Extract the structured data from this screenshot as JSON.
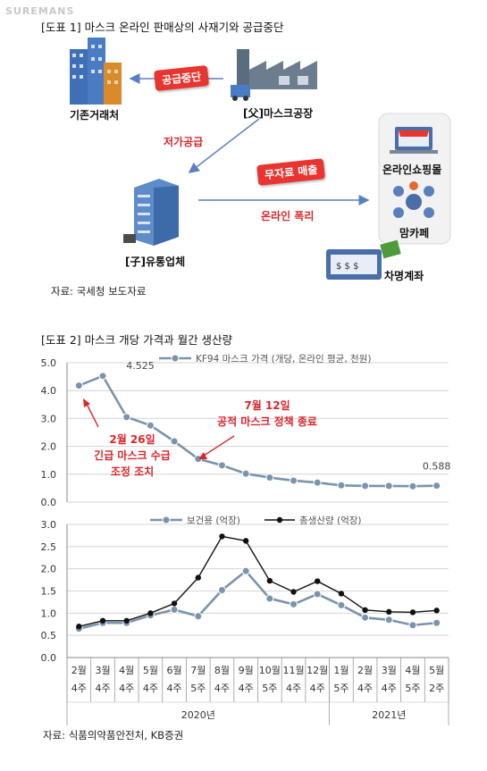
{
  "watermark": "SUREMANS",
  "fig1": {
    "title": "[도표 1] 마스크 온라인 판매상의 사재기와 공급중단",
    "nodes": {
      "existing_trader": "기존거래처",
      "factory": "[父]마스크공장",
      "distributor": "[子]유통업체",
      "online_mall": "온라인쇼핑몰",
      "mom_cafe": "맘카페",
      "borrowed_account": "차명계좌"
    },
    "labels": {
      "supply_stop": "공급중단",
      "low_supply": "저가공급",
      "no_record_sale": "무자료 매출",
      "online_profit": "온라인 폭리"
    },
    "source": "자료: 국세청 보도자료"
  },
  "fig2": {
    "title": "[도표 2] 마스크 개당 가격과 월간 생산량",
    "source": "자료: 식품의약품안전처, KB증권",
    "annotations": {
      "feb26": [
        "2월 26일",
        "긴급 마스크 수급",
        "조정 조치"
      ],
      "jul12": [
        "7월 12일",
        "공적 마스크 정책 종료"
      ]
    },
    "year_labels": [
      "2020년",
      "2021년"
    ]
  },
  "chart_data": [
    {
      "type": "line",
      "categories": [
        "2월 4주",
        "3월 4주",
        "4월 4주",
        "5월 4주",
        "6월 4주",
        "7월 5주",
        "8월 4주",
        "9월 4주",
        "10월 5주",
        "11월 4주",
        "12월 4주",
        "1월 5주",
        "2월 4주",
        "3월 4주",
        "4월 5주",
        "5월 2주"
      ],
      "series": [
        {
          "name": "KF94 마스크 가격 (개당, 온라인 평균, 천원)",
          "values": [
            4.18,
            4.525,
            3.05,
            2.75,
            2.18,
            1.55,
            1.32,
            1.02,
            0.88,
            0.77,
            0.7,
            0.6,
            0.58,
            0.58,
            0.57,
            0.588
          ],
          "color": "#7b93ac"
        }
      ],
      "data_labels": [
        {
          "index": 1,
          "text": "4.525"
        },
        {
          "index": 15,
          "text": "0.588"
        }
      ],
      "yticks": [
        "0.0",
        "1.0",
        "2.0",
        "3.0",
        "4.0",
        "5.0"
      ],
      "ylim": [
        0,
        5
      ],
      "grid": true,
      "legend": "top"
    },
    {
      "type": "line",
      "categories": [
        "2월 4주",
        "3월 4주",
        "4월 4주",
        "5월 4주",
        "6월 4주",
        "7월 5주",
        "8월 4주",
        "9월 4주",
        "10월 5주",
        "11월 4주",
        "12월 4주",
        "1월 5주",
        "2월 4주",
        "3월 4주",
        "4월 5주",
        "5월 2주"
      ],
      "series": [
        {
          "name": "보건용 (억장)",
          "values": [
            0.65,
            0.78,
            0.78,
            0.95,
            1.08,
            0.93,
            1.52,
            1.95,
            1.33,
            1.2,
            1.43,
            1.18,
            0.9,
            0.85,
            0.73,
            0.78
          ],
          "color": "#7b93ac"
        },
        {
          "name": "총생산량 (억장)",
          "values": [
            0.7,
            0.83,
            0.83,
            1.0,
            1.22,
            1.8,
            2.73,
            2.63,
            1.73,
            1.48,
            1.72,
            1.44,
            1.07,
            1.03,
            1.02,
            1.06
          ],
          "color": "#111111"
        }
      ],
      "month_labels": [
        "2월",
        "3월",
        "4월",
        "5월",
        "6월",
        "7월",
        "8월",
        "9월",
        "10월",
        "11월",
        "12월",
        "1월",
        "2월",
        "3월",
        "4월",
        "5월"
      ],
      "week_labels": [
        "4주",
        "4주",
        "4주",
        "4주",
        "4주",
        "5주",
        "4주",
        "4주",
        "5주",
        "4주",
        "4주",
        "5주",
        "4주",
        "4주",
        "5주",
        "2주"
      ],
      "yticks": [
        "0.0",
        "0.5",
        "1.0",
        "1.5",
        "2.0",
        "2.5",
        "3.0"
      ],
      "ylim": [
        0,
        3
      ],
      "grid": true,
      "legend": "top"
    }
  ]
}
